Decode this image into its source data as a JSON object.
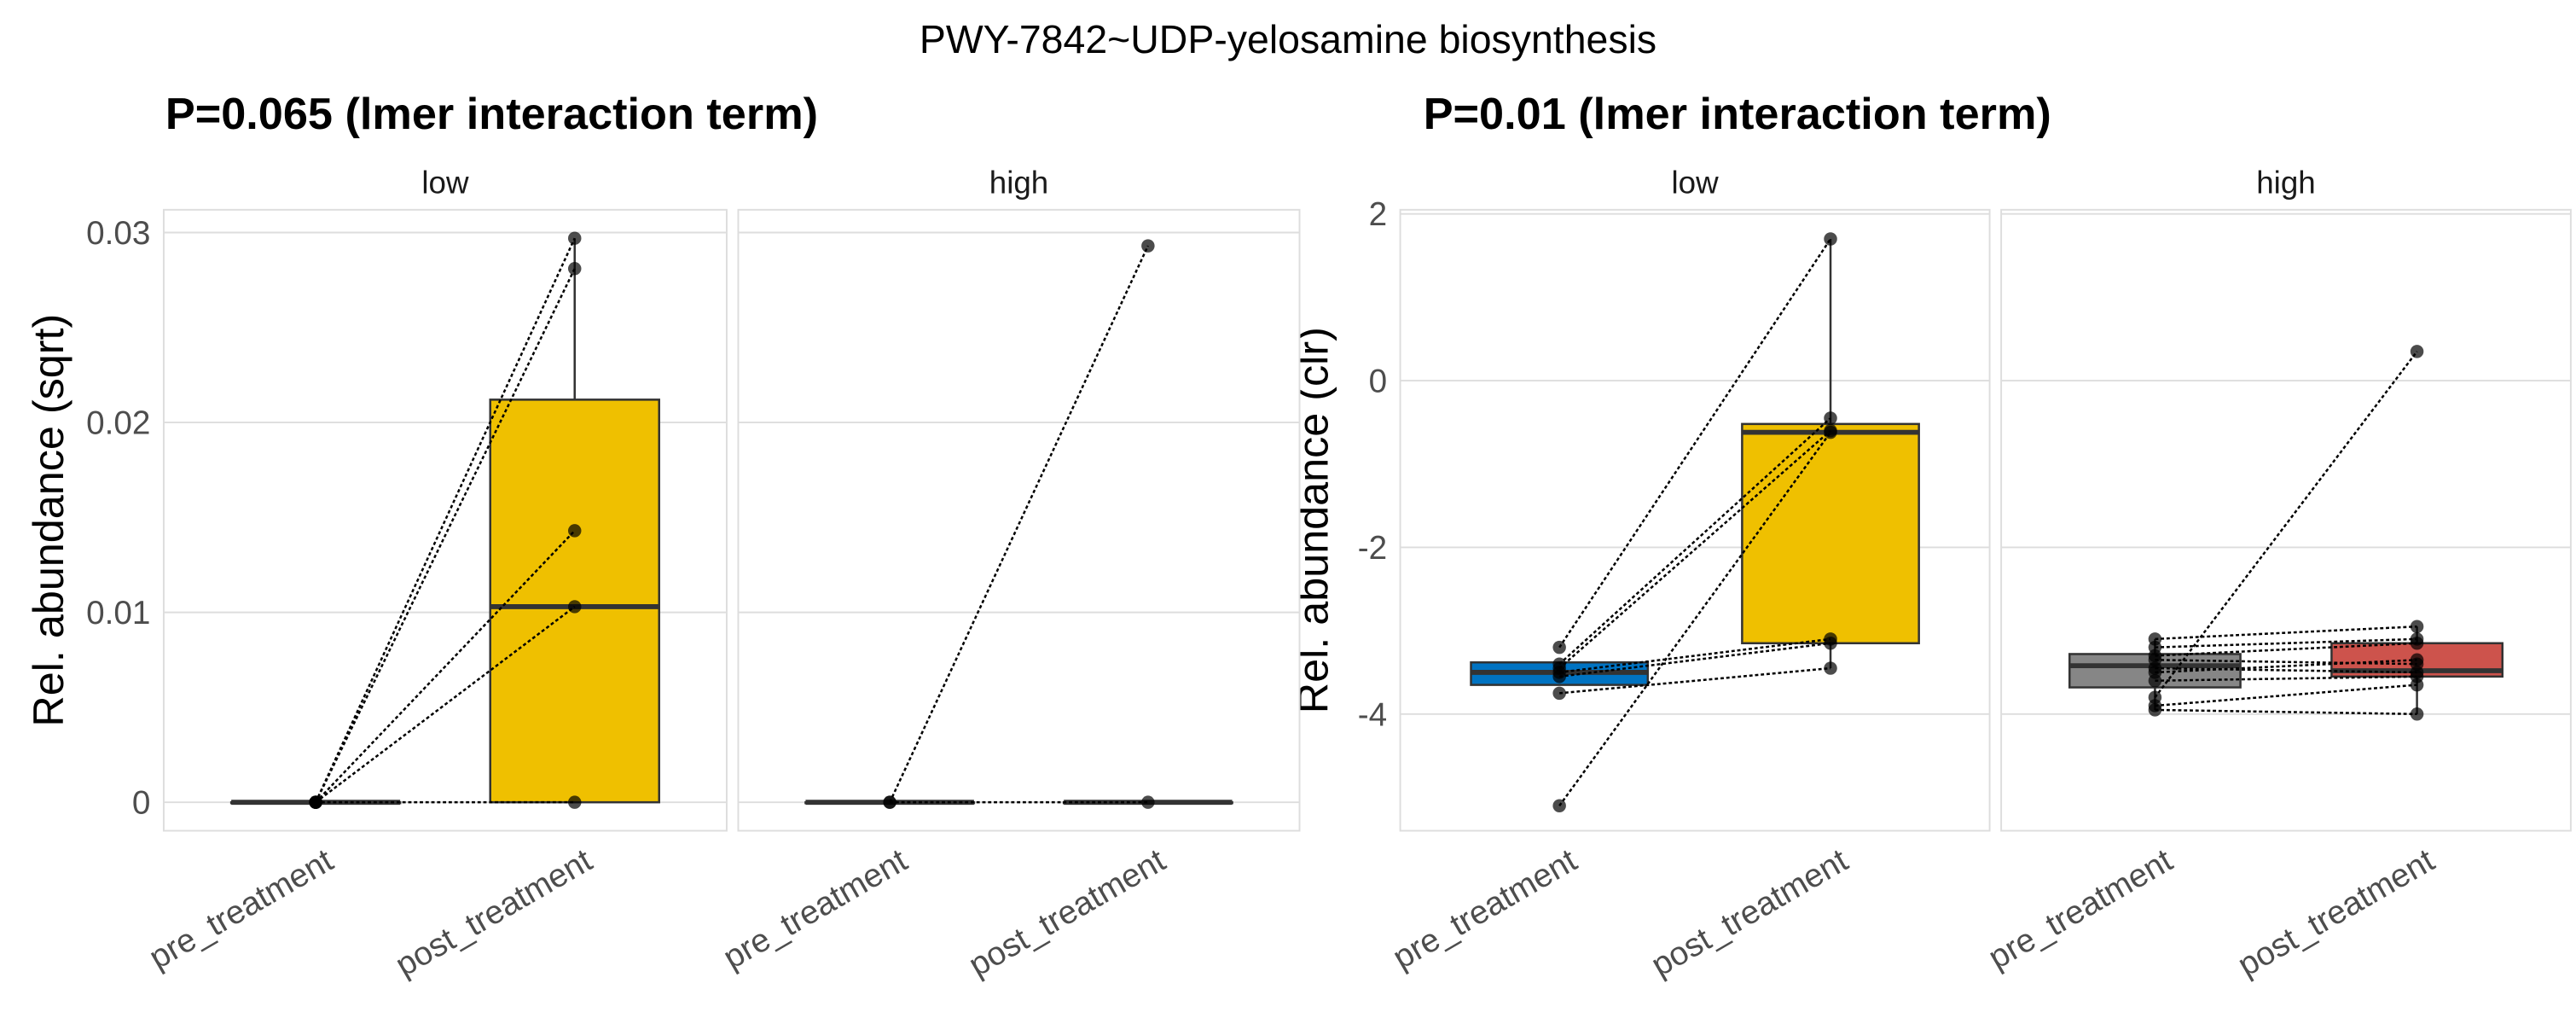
{
  "title": "PWY-7842~UDP-yelosamine biosynthesis",
  "colors": {
    "pre_low": "#0073C2",
    "post": "#EFC000",
    "pre_high": "#868686",
    "post_high": "#CD534C",
    "grid": "#DDDDDD",
    "box_line": "#333333"
  },
  "chart_data": [
    {
      "type": "box",
      "title": "P=0.065 (lmer interaction term)",
      "ylabel": "Rel. abundance (sqrt)",
      "ylim": [
        -0.0015,
        0.0312
      ],
      "yticks": [
        0,
        0.01,
        0.02,
        0.03
      ],
      "ytick_labels": [
        "0",
        "0.01",
        "0.02",
        "0.03"
      ],
      "categories": [
        "pre_treatment",
        "post_treatment"
      ],
      "grid": true,
      "facets": [
        {
          "label": "low",
          "boxes": [
            {
              "fill": "#EFC000",
              "q1": 0,
              "median": 0,
              "q3": 0,
              "lo": 0,
              "hi": 0
            },
            {
              "fill": "#EFC000",
              "q1": 0,
              "median": 0.0103,
              "q3": 0.0212,
              "lo": 0,
              "hi": 0.0297
            }
          ],
          "pairs": [
            [
              0,
              0.0297
            ],
            [
              0,
              0.0281
            ],
            [
              0,
              0.0143
            ],
            [
              0,
              0.0103
            ],
            [
              0,
              0
            ]
          ]
        },
        {
          "label": "high",
          "boxes": [
            {
              "fill": "#EFC000",
              "q1": 0,
              "median": 0,
              "q3": 0,
              "lo": 0,
              "hi": 0
            },
            {
              "fill": "#EFC000",
              "q1": 0,
              "median": 0,
              "q3": 0,
              "lo": 0,
              "hi": 0
            }
          ],
          "pairs": [
            [
              0,
              0.0293
            ],
            [
              0,
              0
            ]
          ]
        }
      ]
    },
    {
      "type": "box",
      "title": "P=0.01 (lmer interaction term)",
      "ylabel": "Rel. abundance (clr)",
      "ylim": [
        -5.4,
        2.05
      ],
      "yticks": [
        -4,
        -2,
        0,
        2
      ],
      "ytick_labels": [
        "-4",
        "-2",
        "0",
        "2"
      ],
      "categories": [
        "pre_treatment",
        "post_treatment"
      ],
      "grid": true,
      "facets": [
        {
          "label": "low",
          "boxes": [
            {
              "fill": "#0073C2",
              "q1": -3.65,
              "median": -3.5,
              "q3": -3.38,
              "lo": -3.65,
              "hi": -3.38
            },
            {
              "fill": "#EFC000",
              "q1": -3.15,
              "median": -0.62,
              "q3": -0.52,
              "lo": -3.45,
              "hi": 1.7
            }
          ],
          "pairs": [
            [
              -3.2,
              1.7
            ],
            [
              -3.4,
              -0.45
            ],
            [
              -3.45,
              -0.6
            ],
            [
              -5.1,
              -0.62
            ],
            [
              -3.5,
              -3.1
            ],
            [
              -3.55,
              -3.15
            ],
            [
              -3.75,
              -3.45
            ]
          ]
        },
        {
          "label": "high",
          "boxes": [
            {
              "fill": "#868686",
              "q1": -3.68,
              "median": -3.42,
              "q3": -3.28,
              "lo": -3.95,
              "hi": -3.1
            },
            {
              "fill": "#CD534C",
              "q1": -3.55,
              "median": -3.48,
              "q3": -3.15,
              "lo": -4.0,
              "hi": -2.95
            }
          ],
          "pairs": [
            [
              -3.1,
              -2.95
            ],
            [
              -3.2,
              -3.1
            ],
            [
              -3.3,
              -3.15
            ],
            [
              -3.35,
              -3.4
            ],
            [
              -3.45,
              -3.5
            ],
            [
              -3.5,
              -3.35
            ],
            [
              -3.6,
              -3.55
            ],
            [
              -3.8,
              0.35
            ],
            [
              -3.9,
              -3.65
            ],
            [
              -3.95,
              -4.0
            ]
          ]
        }
      ]
    }
  ]
}
